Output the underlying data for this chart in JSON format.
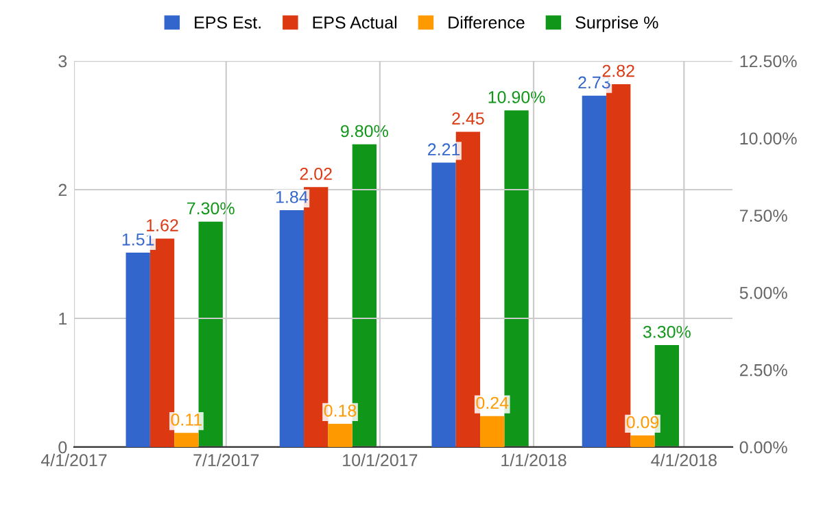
{
  "chart_data": {
    "type": "bar",
    "x": [
      "2017-05-31",
      "2017-08-31",
      "2017-11-30",
      "2018-02-28"
    ],
    "xlim": [
      "2017-04-01",
      "2018-04-30"
    ],
    "xticks": [
      {
        "value": "2017-04-01",
        "label": "4/1/2017"
      },
      {
        "value": "2017-07-01",
        "label": "7/1/2017"
      },
      {
        "value": "2017-10-01",
        "label": "10/1/2017"
      },
      {
        "value": "2018-01-01",
        "label": "1/1/2018"
      },
      {
        "value": "2018-04-01",
        "label": "4/1/2018"
      }
    ],
    "ylim": [
      0,
      3
    ],
    "yticks": [
      0,
      1,
      2,
      3
    ],
    "y2lim": [
      0,
      12.5
    ],
    "y2ticks": [
      {
        "value": 0,
        "label": "0.00%"
      },
      {
        "value": 2.5,
        "label": "2.50%"
      },
      {
        "value": 5,
        "label": "5.00%"
      },
      {
        "value": 7.5,
        "label": "7.50%"
      },
      {
        "value": 10,
        "label": "10.00%"
      },
      {
        "value": 12.5,
        "label": "12.50%"
      }
    ],
    "series": [
      {
        "name": "EPS Est.",
        "color": "#3366cc",
        "values": [
          1.51,
          1.84,
          2.21,
          2.73
        ],
        "value_labels": [
          "1.51",
          "1.84",
          "2.21",
          "2.73"
        ]
      },
      {
        "name": "EPS Actual",
        "color": "#dc3912",
        "values": [
          1.62,
          2.02,
          2.45,
          2.82
        ],
        "value_labels": [
          "1.62",
          "2.02",
          "2.45",
          "2.82"
        ]
      },
      {
        "name": "Difference",
        "color": "#ff9900",
        "values": [
          0.11,
          0.18,
          0.24,
          0.09
        ],
        "value_labels": [
          "0.11",
          "0.18",
          "0.24",
          "0.09"
        ]
      },
      {
        "name": "Surprise %",
        "color": "#109618",
        "axis": "y2",
        "values": [
          7.3,
          9.8,
          10.9,
          3.3
        ],
        "value_labels": [
          "7.30%",
          "9.80%",
          "10.90%",
          "3.30%"
        ]
      }
    ],
    "grid": true,
    "legend": "top"
  }
}
